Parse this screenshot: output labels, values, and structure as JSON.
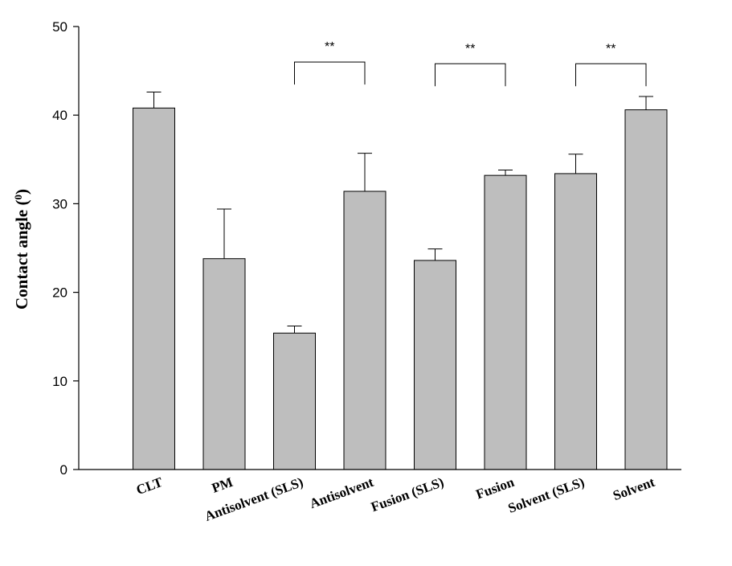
{
  "chart_data": {
    "type": "bar",
    "ylabel": "Contact angle (",
    "ylabel_sup": "0",
    "ylabel_end": ")",
    "ylim": [
      0,
      50
    ],
    "yticks": [
      0,
      10,
      20,
      30,
      40,
      50
    ],
    "categories": [
      "CLT",
      "PM",
      "Antisolvent (SLS)",
      "Antisolvent",
      "Fusion (SLS)",
      "Fusion",
      "Solvent (SLS)",
      "Solvent"
    ],
    "values": [
      40.8,
      23.8,
      15.4,
      31.4,
      23.6,
      33.2,
      33.4,
      40.6
    ],
    "errors": [
      1.8,
      5.6,
      0.8,
      4.3,
      1.3,
      0.6,
      2.2,
      1.5
    ],
    "bar_color": "#bebebe",
    "significance": [
      {
        "from": 2,
        "to": 3,
        "y": 46.0,
        "label": "**"
      },
      {
        "from": 4,
        "to": 5,
        "y": 45.8,
        "label": "**"
      },
      {
        "from": 6,
        "to": 7,
        "y": 45.8,
        "label": "**"
      }
    ]
  }
}
